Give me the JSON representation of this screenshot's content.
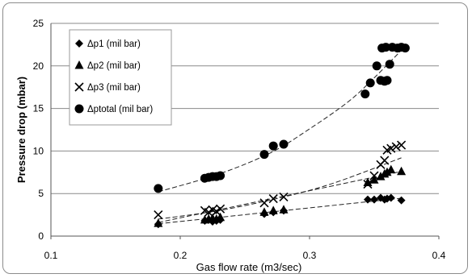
{
  "chart_data": {
    "type": "scatter",
    "title": "",
    "xlabel": "Gas flow rate (m3/sec)",
    "ylabel": "Pressure drop (mbar)",
    "xlim": [
      0.1,
      0.4
    ],
    "ylim": [
      0,
      25
    ],
    "x_ticks": [
      "0.1",
      "0.2",
      "0.3",
      "0.4"
    ],
    "y_ticks": [
      "0",
      "5",
      "10",
      "15",
      "20",
      "25"
    ],
    "grid": "horizontal major gridlines",
    "legend_position": "top-left inside plot",
    "series": [
      {
        "name": "Δp1  (mil bar)",
        "marker": "diamond",
        "trend": "dashed",
        "points": [
          [
            0.183,
            1.4
          ],
          [
            0.219,
            1.8
          ],
          [
            0.222,
            1.9
          ],
          [
            0.225,
            1.7
          ],
          [
            0.228,
            1.8
          ],
          [
            0.231,
            1.9
          ],
          [
            0.265,
            2.6
          ],
          [
            0.272,
            2.8
          ],
          [
            0.28,
            3.0
          ],
          [
            0.345,
            4.3
          ],
          [
            0.35,
            4.3
          ],
          [
            0.355,
            4.5
          ],
          [
            0.358,
            4.3
          ],
          [
            0.36,
            4.4
          ],
          [
            0.363,
            4.5
          ],
          [
            0.371,
            4.2
          ]
        ]
      },
      {
        "name": "Δp2  (mil bar)",
        "marker": "triangle",
        "trend": "dashed",
        "points": [
          [
            0.183,
            1.5
          ],
          [
            0.219,
            1.9
          ],
          [
            0.222,
            2.0
          ],
          [
            0.225,
            2.1
          ],
          [
            0.228,
            2.0
          ],
          [
            0.231,
            2.2
          ],
          [
            0.265,
            2.8
          ],
          [
            0.272,
            3.0
          ],
          [
            0.28,
            3.1
          ],
          [
            0.345,
            6.3
          ],
          [
            0.35,
            6.6
          ],
          [
            0.355,
            7.0
          ],
          [
            0.358,
            7.3
          ],
          [
            0.36,
            7.5
          ],
          [
            0.363,
            7.8
          ],
          [
            0.371,
            7.6
          ]
        ]
      },
      {
        "name": "Δp3  (mil bar)",
        "marker": "cross",
        "trend": "dashed",
        "points": [
          [
            0.183,
            2.5
          ],
          [
            0.219,
            3.0
          ],
          [
            0.222,
            2.8
          ],
          [
            0.225,
            3.1
          ],
          [
            0.228,
            2.9
          ],
          [
            0.231,
            3.2
          ],
          [
            0.265,
            3.9
          ],
          [
            0.272,
            4.4
          ],
          [
            0.28,
            4.6
          ],
          [
            0.345,
            6.1
          ],
          [
            0.35,
            7.1
          ],
          [
            0.355,
            8.4
          ],
          [
            0.358,
            8.9
          ],
          [
            0.36,
            10.1
          ],
          [
            0.363,
            10.3
          ],
          [
            0.367,
            10.5
          ],
          [
            0.371,
            10.7
          ]
        ]
      },
      {
        "name": "Δptotal  (mil bar)",
        "marker": "circle",
        "trend": "dashed",
        "points": [
          [
            0.183,
            5.6
          ],
          [
            0.219,
            6.8
          ],
          [
            0.222,
            6.9
          ],
          [
            0.225,
            7.0
          ],
          [
            0.228,
            7.0
          ],
          [
            0.231,
            7.1
          ],
          [
            0.265,
            9.6
          ],
          [
            0.272,
            10.6
          ],
          [
            0.28,
            10.8
          ],
          [
            0.343,
            16.7
          ],
          [
            0.347,
            18.0
          ],
          [
            0.352,
            20.0
          ],
          [
            0.355,
            18.3
          ],
          [
            0.358,
            18.2
          ],
          [
            0.36,
            18.3
          ],
          [
            0.356,
            22.1
          ],
          [
            0.359,
            22.2
          ],
          [
            0.362,
            20.2
          ],
          [
            0.364,
            22.2
          ],
          [
            0.368,
            22.1
          ],
          [
            0.371,
            22.2
          ],
          [
            0.374,
            22.1
          ]
        ]
      }
    ],
    "trendlines": [
      {
        "series": "Δp1  (mil bar)",
        "type": "linear",
        "from": [
          0.183,
          1.45
        ],
        "to": [
          0.371,
          4.45
        ]
      },
      {
        "series": "Δp2  (mil bar)",
        "type": "linear",
        "from": [
          0.183,
          1.6
        ],
        "to": [
          0.371,
          7.6
        ]
      },
      {
        "series": "Δp3  (mil bar)",
        "type": "exponential",
        "points": [
          [
            0.183,
            2.0
          ],
          [
            0.23,
            3.0
          ],
          [
            0.28,
            4.6
          ],
          [
            0.32,
            6.3
          ],
          [
            0.371,
            9.2
          ]
        ]
      },
      {
        "series": "Δptotal  (mil bar)",
        "type": "exponential",
        "points": [
          [
            0.183,
            5.2
          ],
          [
            0.23,
            7.3
          ],
          [
            0.27,
            9.8
          ],
          [
            0.3,
            12.6
          ],
          [
            0.33,
            15.8
          ],
          [
            0.35,
            18.6
          ],
          [
            0.374,
            22.3
          ]
        ]
      }
    ]
  }
}
